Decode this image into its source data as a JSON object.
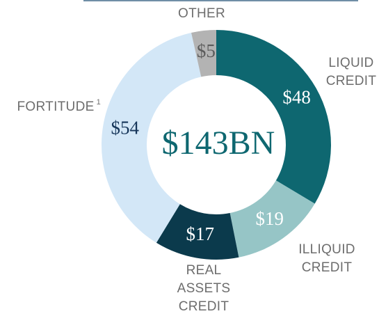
{
  "chart_data": {
    "type": "donut",
    "center_label": "$143BN",
    "categories": [
      "LIQUID CREDIT",
      "ILLIQUID CREDIT",
      "REAL ASSETS CREDIT",
      "FORTITUDE",
      "OTHER"
    ],
    "footnote_marker": "1",
    "values": [
      48,
      19,
      17,
      54,
      5
    ],
    "value_labels": [
      "$48",
      "$19",
      "$17",
      "$54",
      "$5"
    ],
    "colors": [
      "#0e6770",
      "#96c5c6",
      "#0b3a4c",
      "#d3e7f7",
      "#b3b3b3"
    ],
    "value_label_colors": [
      "#ffffff",
      "#ffffff",
      "#ffffff",
      "#16365a",
      "#5c5c5c"
    ]
  }
}
